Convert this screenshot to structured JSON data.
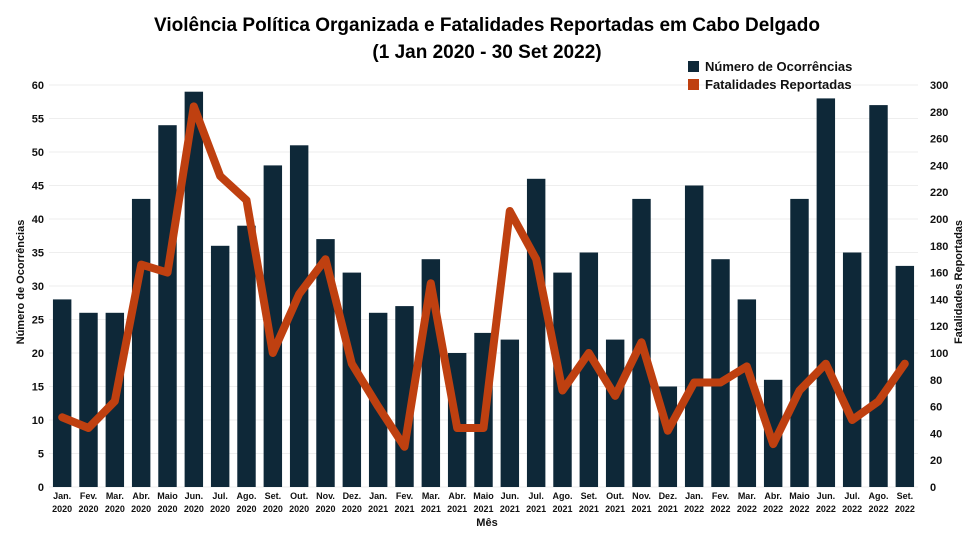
{
  "chart_data": {
    "type": "bar",
    "title": "Violência Política Organizada e Fatalidades Reportadas em Cabo Delgado",
    "subtitle": "(1 Jan 2020 - 30 Set 2022)",
    "xlabel": "Mês",
    "ylabel": "Número de Ocorrências",
    "y2label": "Fatalidades Reportadas",
    "ylim": [
      0,
      60
    ],
    "y2lim": [
      0,
      300
    ],
    "yticks": [
      "0",
      "5",
      "10",
      "15",
      "20",
      "25",
      "30",
      "35",
      "40",
      "45",
      "50",
      "55",
      "60"
    ],
    "y2ticks": [
      "0",
      "20",
      "40",
      "60",
      "80",
      "100",
      "120",
      "140",
      "160",
      "180",
      "200",
      "220",
      "240",
      "260",
      "280",
      "300"
    ],
    "grid": true,
    "legend_position": "top-right",
    "categories": [
      {
        "month": "Jan.",
        "year": "2020"
      },
      {
        "month": "Fev.",
        "year": "2020"
      },
      {
        "month": "Mar.",
        "year": "2020"
      },
      {
        "month": "Abr.",
        "year": "2020"
      },
      {
        "month": "Maio",
        "year": "2020"
      },
      {
        "month": "Jun.",
        "year": "2020"
      },
      {
        "month": "Jul.",
        "year": "2020"
      },
      {
        "month": "Ago.",
        "year": "2020"
      },
      {
        "month": "Set.",
        "year": "2020"
      },
      {
        "month": "Out.",
        "year": "2020"
      },
      {
        "month": "Nov.",
        "year": "2020"
      },
      {
        "month": "Dez.",
        "year": "2020"
      },
      {
        "month": "Jan.",
        "year": "2021"
      },
      {
        "month": "Fev.",
        "year": "2021"
      },
      {
        "month": "Mar.",
        "year": "2021"
      },
      {
        "month": "Abr.",
        "year": "2021"
      },
      {
        "month": "Maio",
        "year": "2021"
      },
      {
        "month": "Jun.",
        "year": "2021"
      },
      {
        "month": "Jul.",
        "year": "2021"
      },
      {
        "month": "Ago.",
        "year": "2021"
      },
      {
        "month": "Set.",
        "year": "2021"
      },
      {
        "month": "Out.",
        "year": "2021"
      },
      {
        "month": "Nov.",
        "year": "2021"
      },
      {
        "month": "Dez.",
        "year": "2021"
      },
      {
        "month": "Jan.",
        "year": "2022"
      },
      {
        "month": "Fev.",
        "year": "2022"
      },
      {
        "month": "Mar.",
        "year": "2022"
      },
      {
        "month": "Abr.",
        "year": "2022"
      },
      {
        "month": "Maio",
        "year": "2022"
      },
      {
        "month": "Jun.",
        "year": "2022"
      },
      {
        "month": "Jul.",
        "year": "2022"
      },
      {
        "month": "Ago.",
        "year": "2022"
      },
      {
        "month": "Set.",
        "year": "2022"
      }
    ],
    "series": [
      {
        "name": "Número de Ocorrências",
        "type": "bar",
        "axis": "left",
        "color": "#0e2838",
        "values": [
          28,
          26,
          26,
          43,
          54,
          59,
          36,
          39,
          48,
          51,
          37,
          32,
          26,
          27,
          34,
          20,
          23,
          22,
          46,
          32,
          35,
          22,
          43,
          15,
          45,
          34,
          28,
          16,
          43,
          58,
          35,
          57,
          33
        ]
      },
      {
        "name": "Fatalidades Reportadas",
        "type": "line",
        "axis": "right",
        "color": "#bf4010",
        "values": [
          52,
          44,
          64,
          166,
          160,
          284,
          232,
          214,
          100,
          144,
          170,
          92,
          60,
          30,
          152,
          44,
          44,
          206,
          170,
          72,
          100,
          68,
          108,
          42,
          78,
          78,
          90,
          32,
          72,
          92,
          50,
          64,
          92
        ]
      }
    ]
  }
}
